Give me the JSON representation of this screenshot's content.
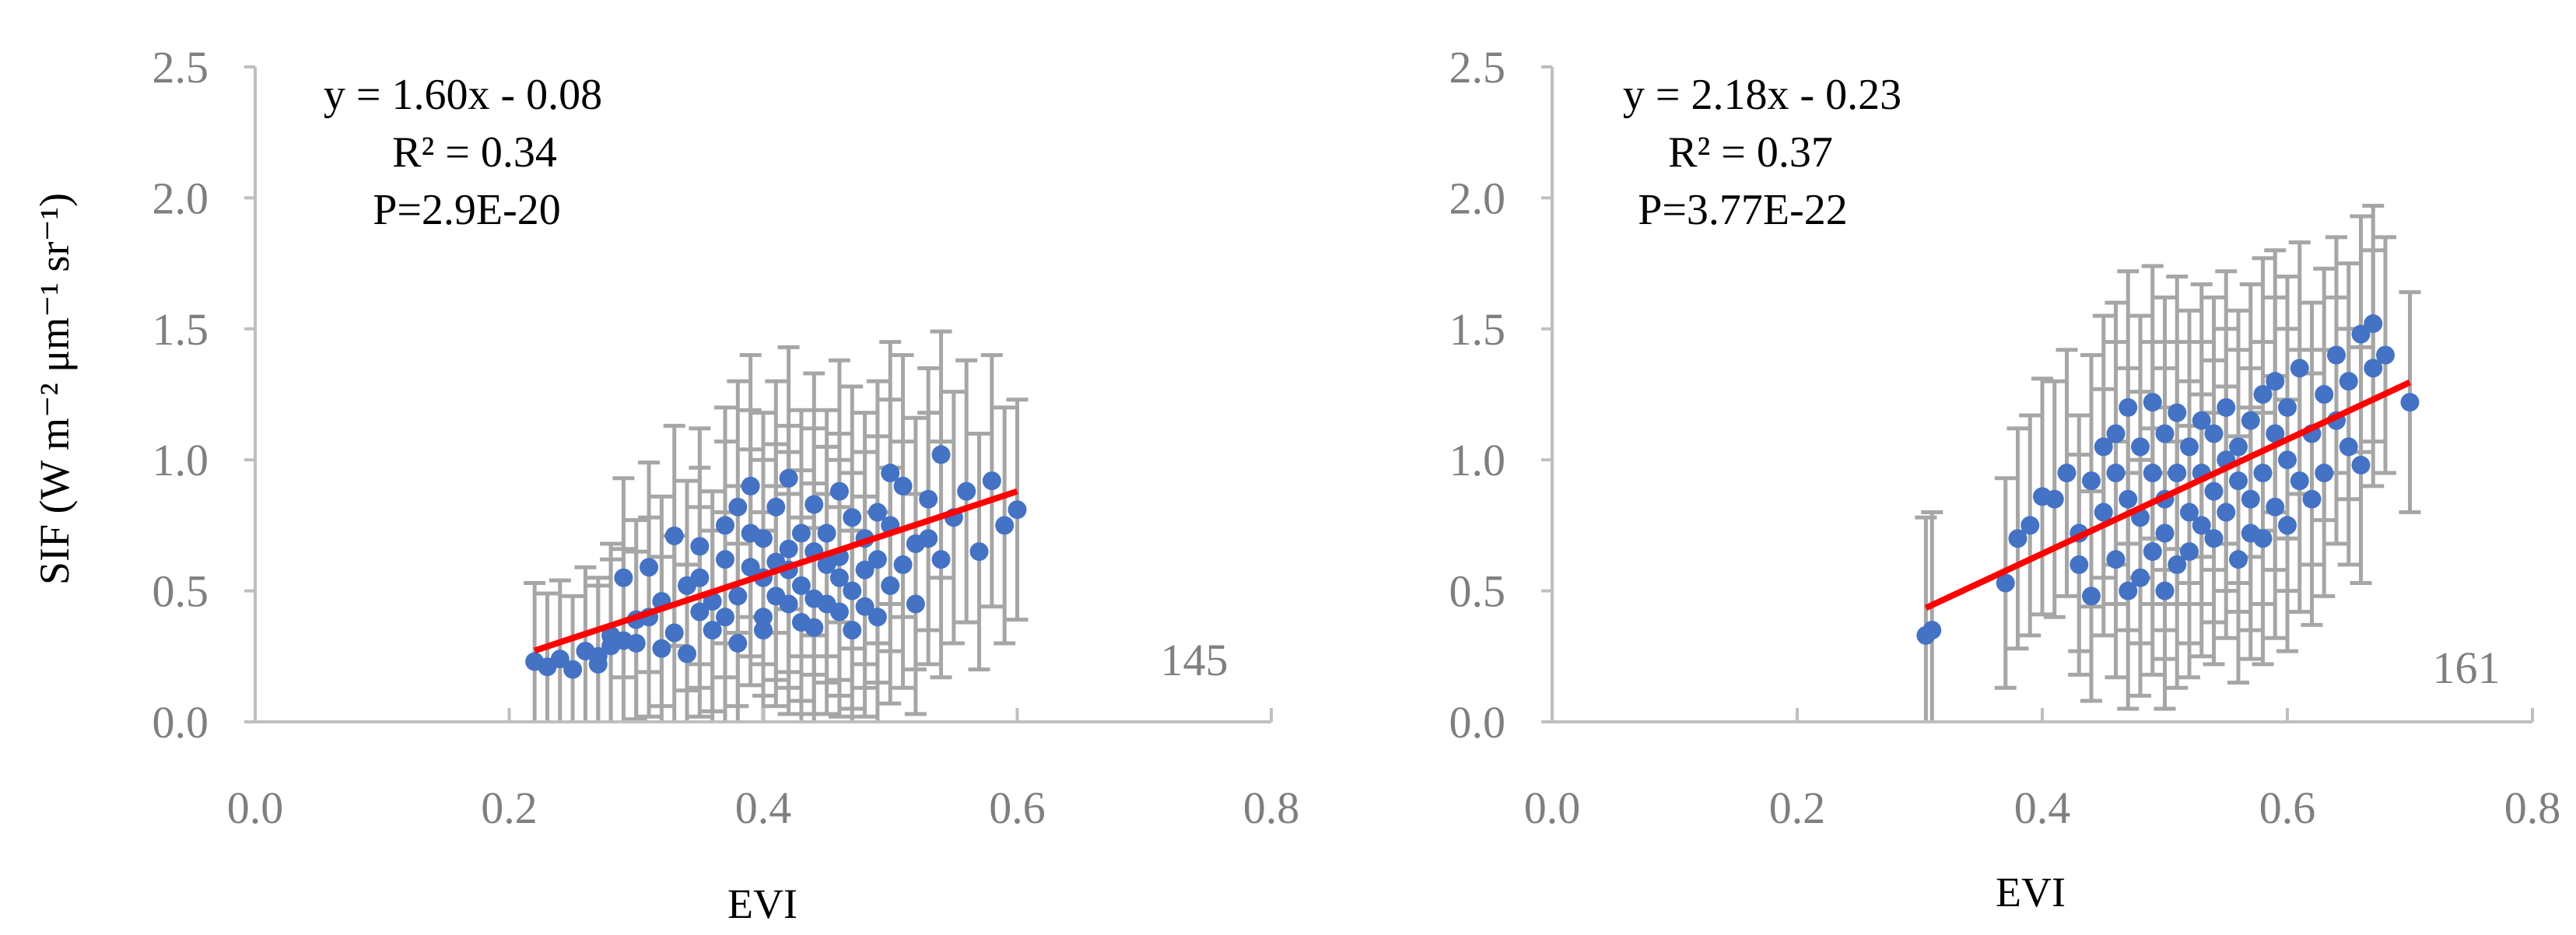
{
  "chart_data": [
    {
      "type": "scatter",
      "xlabel": "EVI",
      "ylabel": "SIF (W m⁻² μm⁻¹ sr⁻¹)",
      "xlim": [
        0.0,
        0.8
      ],
      "ylim": [
        0.0,
        2.5
      ],
      "xticks": [
        "0.0",
        "0.2",
        "0.4",
        "0.6",
        "0.8"
      ],
      "yticks": [
        "0.0",
        "0.5",
        "1.0",
        "1.5",
        "2.0",
        "2.5"
      ],
      "grid": false,
      "annotations": [
        "y = 1.60x - 0.08",
        "R² = 0.34",
        "P=2.9E-20"
      ],
      "sample_label": "145",
      "fit": {
        "slope": 1.6,
        "intercept": -0.08,
        "x_range": [
          0.22,
          0.6
        ],
        "color": "#ff0000"
      },
      "colors": {
        "points": "#4472c4",
        "error_bars": "#a6a6a6",
        "axis": "#bfbfbf"
      },
      "series": [
        {
          "x": [
            0.22,
            0.23,
            0.24,
            0.25,
            0.26,
            0.27,
            0.27,
            0.28,
            0.28,
            0.29,
            0.29,
            0.3,
            0.3,
            0.31,
            0.31,
            0.32,
            0.32,
            0.33,
            0.33,
            0.34,
            0.34,
            0.35,
            0.35,
            0.35,
            0.36,
            0.36,
            0.37,
            0.37,
            0.37,
            0.38,
            0.38,
            0.38,
            0.39,
            0.39,
            0.39,
            0.4,
            0.4,
            0.4,
            0.4,
            0.41,
            0.41,
            0.41,
            0.42,
            0.42,
            0.42,
            0.42,
            0.43,
            0.43,
            0.43,
            0.44,
            0.44,
            0.44,
            0.44,
            0.45,
            0.45,
            0.45,
            0.46,
            0.46,
            0.46,
            0.46,
            0.47,
            0.47,
            0.47,
            0.48,
            0.48,
            0.48,
            0.49,
            0.49,
            0.49,
            0.5,
            0.5,
            0.5,
            0.51,
            0.51,
            0.52,
            0.52,
            0.53,
            0.53,
            0.54,
            0.54,
            0.55,
            0.56,
            0.57,
            0.58,
            0.59,
            0.6
          ],
          "y": [
            0.23,
            0.21,
            0.24,
            0.2,
            0.27,
            0.22,
            0.25,
            0.29,
            0.33,
            0.31,
            0.55,
            0.3,
            0.39,
            0.4,
            0.59,
            0.46,
            0.28,
            0.34,
            0.71,
            0.26,
            0.52,
            0.42,
            0.55,
            0.67,
            0.46,
            0.35,
            0.62,
            0.4,
            0.75,
            0.82,
            0.48,
            0.3,
            0.59,
            0.72,
            0.9,
            0.55,
            0.4,
            0.7,
            0.35,
            0.61,
            0.82,
            0.48,
            0.66,
            0.93,
            0.45,
            0.58,
            0.72,
            0.38,
            0.52,
            0.65,
            0.83,
            0.47,
            0.36,
            0.6,
            0.72,
            0.45,
            0.88,
            0.55,
            0.42,
            0.63,
            0.78,
            0.5,
            0.35,
            0.7,
            0.58,
            0.44,
            0.62,
            0.8,
            0.4,
            0.75,
            0.52,
            0.95,
            0.6,
            0.9,
            0.68,
            0.45,
            0.85,
            0.7,
            0.62,
            1.02,
            0.78,
            0.88,
            0.65,
            0.92,
            0.75,
            0.81
          ],
          "error": [
            0.3,
            0.28,
            0.3,
            0.28,
            0.32,
            0.3,
            0.3,
            0.33,
            0.35,
            0.35,
            0.38,
            0.35,
            0.38,
            0.38,
            0.4,
            0.4,
            0.35,
            0.37,
            0.42,
            0.34,
            0.4,
            0.4,
            0.42,
            0.45,
            0.42,
            0.38,
            0.45,
            0.4,
            0.45,
            0.48,
            0.42,
            0.38,
            0.45,
            0.47,
            0.5,
            0.45,
            0.4,
            0.48,
            0.38,
            0.45,
            0.48,
            0.42,
            0.47,
            0.5,
            0.42,
            0.45,
            0.47,
            0.4,
            0.44,
            0.47,
            0.5,
            0.44,
            0.38,
            0.45,
            0.47,
            0.42,
            0.5,
            0.45,
            0.4,
            0.47,
            0.5,
            0.45,
            0.38,
            0.48,
            0.45,
            0.42,
            0.47,
            0.5,
            0.4,
            0.48,
            0.45,
            0.5,
            0.47,
            0.5,
            0.48,
            0.42,
            0.5,
            0.48,
            0.45,
            0.47,
            0.48,
            0.5,
            0.45,
            0.48,
            0.45,
            0.42
          ]
        }
      ]
    },
    {
      "type": "scatter",
      "xlabel": "EVI",
      "ylabel": "",
      "xlim": [
        0.0,
        0.8
      ],
      "ylim": [
        0.0,
        2.5
      ],
      "xticks": [
        "0.0",
        "0.2",
        "0.4",
        "0.6",
        "0.8"
      ],
      "yticks": [
        "0.0",
        "0.5",
        "1.0",
        "1.5",
        "2.0",
        "2.5"
      ],
      "grid": false,
      "annotations": [
        "y = 2.18x - 0.23",
        "R² = 0.37",
        "P=3.77E-22"
      ],
      "sample_label": "161",
      "fit": {
        "slope": 2.18,
        "intercept": -0.23,
        "x_range": [
          0.305,
          0.7
        ],
        "color": "#ff0000"
      },
      "colors": {
        "points": "#4472c4",
        "error_bars": "#a6a6a6",
        "axis": "#bfbfbf"
      },
      "series": [
        {
          "x": [
            0.305,
            0.31,
            0.37,
            0.38,
            0.39,
            0.4,
            0.41,
            0.42,
            0.43,
            0.43,
            0.44,
            0.44,
            0.45,
            0.45,
            0.46,
            0.46,
            0.46,
            0.47,
            0.47,
            0.47,
            0.48,
            0.48,
            0.48,
            0.49,
            0.49,
            0.49,
            0.5,
            0.5,
            0.5,
            0.5,
            0.51,
            0.51,
            0.51,
            0.52,
            0.52,
            0.52,
            0.53,
            0.53,
            0.53,
            0.54,
            0.54,
            0.54,
            0.55,
            0.55,
            0.55,
            0.56,
            0.56,
            0.56,
            0.57,
            0.57,
            0.57,
            0.58,
            0.58,
            0.58,
            0.59,
            0.59,
            0.59,
            0.6,
            0.6,
            0.6,
            0.61,
            0.61,
            0.62,
            0.62,
            0.63,
            0.63,
            0.64,
            0.64,
            0.65,
            0.65,
            0.66,
            0.66,
            0.67,
            0.67,
            0.68,
            0.7
          ],
          "y": [
            0.33,
            0.35,
            0.53,
            0.7,
            0.75,
            0.86,
            0.85,
            0.95,
            0.72,
            0.6,
            0.48,
            0.92,
            0.8,
            1.05,
            0.62,
            0.95,
            1.1,
            0.5,
            0.85,
            1.2,
            0.55,
            0.78,
            1.05,
            0.95,
            0.65,
            1.22,
            0.5,
            0.85,
            1.1,
            0.72,
            0.6,
            1.18,
            0.95,
            0.8,
            1.05,
            0.65,
            0.75,
            1.15,
            0.95,
            0.7,
            1.1,
            0.88,
            1.0,
            0.8,
            1.2,
            0.62,
            1.05,
            0.92,
            0.85,
            1.15,
            0.72,
            1.25,
            0.95,
            0.7,
            1.1,
            0.82,
            1.3,
            1.0,
            0.75,
            1.2,
            0.92,
            1.35,
            1.1,
            0.85,
            1.25,
            0.95,
            1.4,
            1.15,
            1.05,
            1.3,
            0.98,
            1.48,
            1.35,
            1.52,
            1.4,
            1.22
          ],
          "error": [
            0.45,
            0.45,
            0.4,
            0.42,
            0.42,
            0.45,
            0.45,
            0.47,
            0.45,
            0.42,
            0.4,
            0.48,
            0.47,
            0.5,
            0.45,
            0.5,
            0.5,
            0.45,
            0.5,
            0.52,
            0.45,
            0.48,
            0.5,
            0.5,
            0.47,
            0.52,
            0.45,
            0.5,
            0.52,
            0.48,
            0.47,
            0.52,
            0.5,
            0.5,
            0.52,
            0.48,
            0.5,
            0.52,
            0.5,
            0.48,
            0.52,
            0.5,
            0.5,
            0.48,
            0.52,
            0.47,
            0.52,
            0.5,
            0.5,
            0.52,
            0.48,
            0.52,
            0.5,
            0.48,
            0.52,
            0.5,
            0.5,
            0.5,
            0.48,
            0.5,
            0.5,
            0.48,
            0.5,
            0.48,
            0.48,
            0.47,
            0.45,
            0.47,
            0.45,
            0.45,
            0.45,
            0.45,
            0.45,
            0.45,
            0.45,
            0.42
          ]
        }
      ]
    }
  ]
}
